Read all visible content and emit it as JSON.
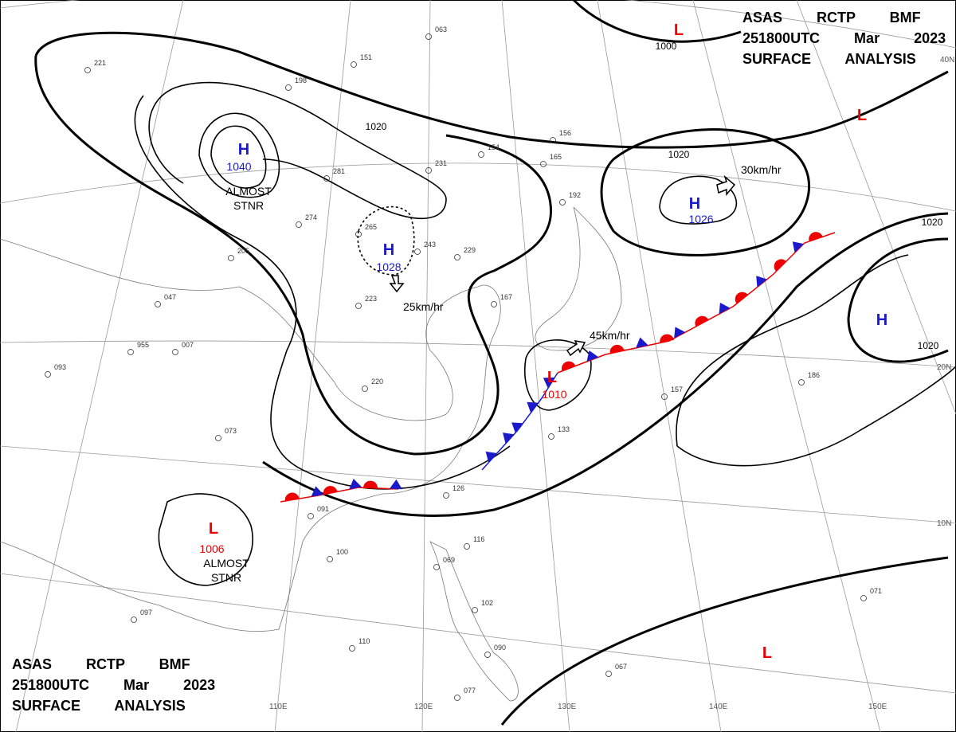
{
  "header": {
    "lines": [
      "ASAS RCTP BMF",
      "251800UTC Mar 2023",
      "SURFACE ANALYSIS"
    ]
  },
  "centers": [
    {
      "label": "H",
      "value": "1040",
      "note": "ALMOST STNR"
    },
    {
      "label": "H",
      "value": "1028"
    },
    {
      "label": "H",
      "value": "1026"
    },
    {
      "label": "H"
    },
    {
      "label": "L",
      "value": "1010"
    },
    {
      "label": "L",
      "value": "1006",
      "note": "ALMOST STNR"
    },
    {
      "label": "L"
    },
    {
      "label": "L"
    },
    {
      "label": "L"
    }
  ],
  "isobar_labels": [
    "1020",
    "1000",
    "1020",
    "1020",
    "1020"
  ],
  "motions": [
    "30km/hr",
    "25km/hr",
    "45km/hr"
  ],
  "lat_labels": [
    "40N",
    "20N",
    "10N"
  ],
  "lon_labels": [
    "110E",
    "120E",
    "130E",
    "140E",
    "150E"
  ],
  "stations": [
    "221",
    "198",
    "151",
    "063",
    "154",
    "231",
    "281",
    "274",
    "265",
    "243",
    "229",
    "205",
    "223",
    "220",
    "047",
    "955",
    "007",
    "093",
    "073",
    "091",
    "100",
    "097",
    "110",
    "077",
    "090",
    "102",
    "116",
    "069",
    "067",
    "071",
    "133",
    "126",
    "186",
    "157",
    "192",
    "165",
    "156",
    "167"
  ]
}
